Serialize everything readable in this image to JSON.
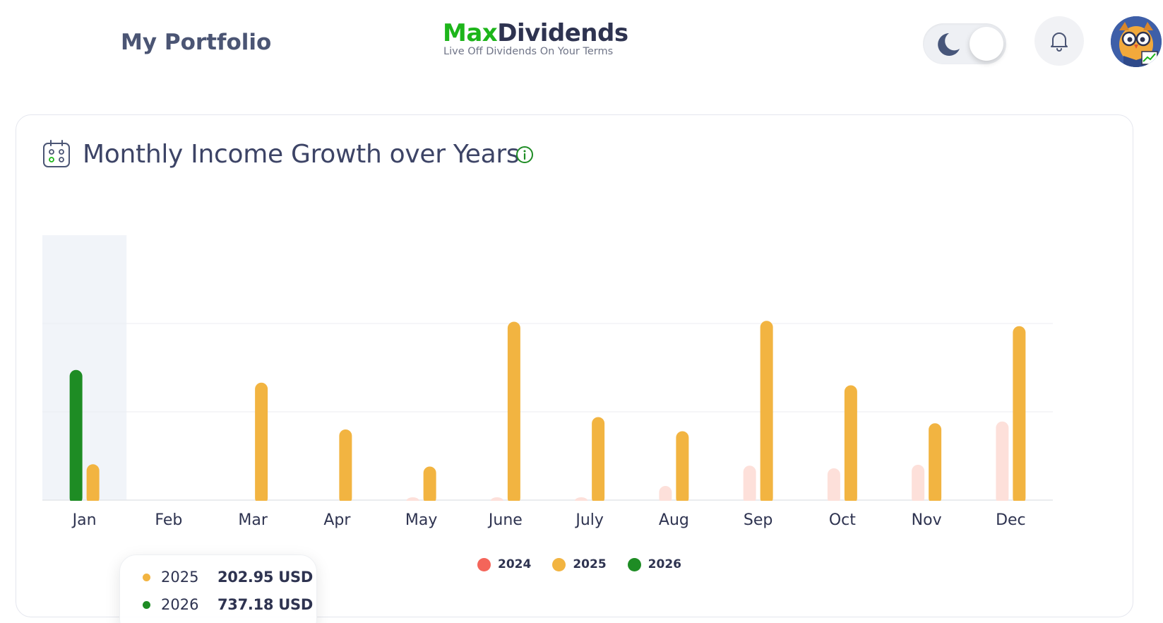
{
  "header": {
    "page_title": "My Portfolio",
    "logo_max": "Max",
    "logo_dividends": "Dividends",
    "logo_tagline": "Live Off Dividends On Your Terms"
  },
  "icons": {
    "theme_toggle": "moon-icon",
    "notifications": "bell-icon",
    "avatar": "owl-avatar",
    "card": "calendar-icon",
    "info": "info-icon"
  },
  "card": {
    "title": "Monthly Income Growth over Years"
  },
  "tooltip": {
    "rows": [
      {
        "year": "2025",
        "value": "202.95 USD",
        "color": "#f2b441"
      },
      {
        "year": "2026",
        "value": "737.18 USD",
        "color": "#1e8c24"
      }
    ]
  },
  "colors": {
    "2024": "#f4655a",
    "2024_faded": "#fde0da",
    "2025": "#f2b441",
    "2026": "#1e8c24",
    "brand_green": "#1db51a",
    "grid": "#eceef2",
    "hover": "#f1f4f9"
  },
  "chart_data": {
    "type": "bar",
    "title": "Monthly Income Growth over Years",
    "categories": [
      "Jan",
      "Feb",
      "Mar",
      "Apr",
      "May",
      "June",
      "July",
      "Aug",
      "Sep",
      "Oct",
      "Nov",
      "Dec"
    ],
    "series": [
      {
        "name": "2024",
        "color": "#f4655a",
        "values": [
          0,
          0,
          0,
          0,
          10,
          10,
          10,
          80,
          195,
          180,
          200,
          445
        ]
      },
      {
        "name": "2025",
        "color": "#f2b441",
        "values": [
          202.95,
          0,
          665,
          400,
          190,
          1010,
          470,
          390,
          1015,
          650,
          435,
          985
        ]
      },
      {
        "name": "2026",
        "color": "#1e8c24",
        "values": [
          737.18,
          0,
          0,
          0,
          0,
          0,
          0,
          0,
          0,
          0,
          0,
          0
        ]
      }
    ],
    "ylim": [
      0,
      1500
    ],
    "grid": true,
    "y_tick_labels_shown": false,
    "highlighted_category": "Jan",
    "legend": {
      "position": "bottom-center",
      "entries": [
        "2024",
        "2025",
        "2026"
      ]
    }
  }
}
